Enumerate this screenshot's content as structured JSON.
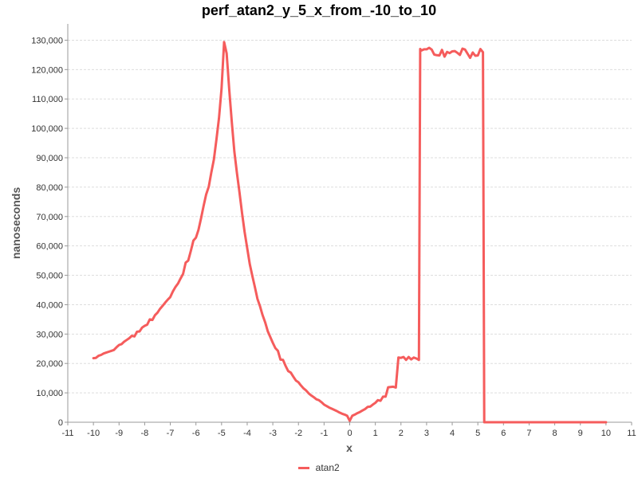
{
  "chart_data": {
    "type": "line",
    "title": "perf_atan2_y_5_x_from_-10_to_10",
    "xlabel": "x",
    "ylabel": "nanoseconds",
    "xlim": [
      -11,
      11
    ],
    "ylim": [
      0,
      135000
    ],
    "x_ticks": [
      "-11",
      "-10",
      "-9",
      "-8",
      "-7",
      "-6",
      "-5",
      "-4",
      "-3",
      "-2",
      "-1",
      "0",
      "1",
      "2",
      "3",
      "4",
      "5",
      "6",
      "7",
      "8",
      "9",
      "10",
      "11"
    ],
    "y_ticks": [
      "0",
      "10,000",
      "20,000",
      "30,000",
      "40,000",
      "50,000",
      "60,000",
      "70,000",
      "80,000",
      "90,000",
      "100,000",
      "110,000",
      "120,000",
      "130,000"
    ],
    "grid": "horizontal dashed",
    "legend_placement": "bottom-center",
    "series": [
      {
        "name": "atan2",
        "color": "#f55c5c",
        "points": [
          [
            -10,
            21800
          ],
          [
            -9.9,
            21900
          ],
          [
            -9.8,
            22600
          ],
          [
            -9.7,
            22900
          ],
          [
            -9.6,
            23400
          ],
          [
            -9.5,
            23700
          ],
          [
            -9.4,
            24000
          ],
          [
            -9.3,
            24300
          ],
          [
            -9.2,
            24600
          ],
          [
            -9.1,
            25500
          ],
          [
            -9.0,
            26300
          ],
          [
            -8.9,
            26600
          ],
          [
            -8.8,
            27400
          ],
          [
            -8.7,
            28000
          ],
          [
            -8.6,
            28600
          ],
          [
            -8.5,
            29400
          ],
          [
            -8.4,
            29200
          ],
          [
            -8.3,
            30800
          ],
          [
            -8.2,
            30900
          ],
          [
            -8.1,
            32200
          ],
          [
            -8.0,
            32800
          ],
          [
            -7.9,
            33200
          ],
          [
            -7.8,
            35000
          ],
          [
            -7.7,
            34800
          ],
          [
            -7.6,
            36400
          ],
          [
            -7.5,
            37300
          ],
          [
            -7.4,
            38600
          ],
          [
            -7.3,
            39600
          ],
          [
            -7.2,
            40700
          ],
          [
            -7.1,
            41700
          ],
          [
            -7.0,
            42600
          ],
          [
            -6.9,
            44500
          ],
          [
            -6.8,
            46000
          ],
          [
            -6.7,
            47200
          ],
          [
            -6.6,
            48900
          ],
          [
            -6.5,
            50500
          ],
          [
            -6.4,
            54300
          ],
          [
            -6.3,
            55000
          ],
          [
            -6.2,
            58300
          ],
          [
            -6.1,
            61800
          ],
          [
            -6.0,
            62800
          ],
          [
            -5.9,
            65500
          ],
          [
            -5.8,
            69400
          ],
          [
            -5.7,
            73600
          ],
          [
            -5.6,
            77500
          ],
          [
            -5.5,
            80200
          ],
          [
            -5.4,
            85000
          ],
          [
            -5.3,
            89400
          ],
          [
            -5.2,
            96200
          ],
          [
            -5.1,
            103500
          ],
          [
            -5.0,
            113500
          ],
          [
            -4.9,
            129400
          ],
          [
            -4.8,
            125500
          ],
          [
            -4.7,
            113000
          ],
          [
            -4.6,
            102000
          ],
          [
            -4.5,
            92000
          ],
          [
            -4.4,
            84800
          ],
          [
            -4.3,
            78200
          ],
          [
            -4.2,
            71200
          ],
          [
            -4.1,
            64800
          ],
          [
            -4.0,
            59200
          ],
          [
            -3.9,
            53800
          ],
          [
            -3.8,
            49800
          ],
          [
            -3.7,
            46000
          ],
          [
            -3.6,
            42000
          ],
          [
            -3.5,
            39500
          ],
          [
            -3.4,
            36500
          ],
          [
            -3.3,
            34000
          ],
          [
            -3.2,
            31000
          ],
          [
            -3.1,
            29000
          ],
          [
            -3.0,
            27000
          ],
          [
            -2.9,
            25200
          ],
          [
            -2.8,
            24300
          ],
          [
            -2.7,
            21300
          ],
          [
            -2.6,
            21200
          ],
          [
            -2.5,
            19100
          ],
          [
            -2.4,
            17400
          ],
          [
            -2.3,
            16900
          ],
          [
            -2.2,
            15500
          ],
          [
            -2.1,
            14200
          ],
          [
            -2.0,
            13600
          ],
          [
            -1.9,
            12500
          ],
          [
            -1.8,
            11500
          ],
          [
            -1.7,
            10800
          ],
          [
            -1.6,
            9800
          ],
          [
            -1.5,
            9100
          ],
          [
            -1.4,
            8500
          ],
          [
            -1.3,
            7800
          ],
          [
            -1.2,
            7500
          ],
          [
            -1.1,
            6800
          ],
          [
            -1.0,
            6000
          ],
          [
            -0.9,
            5500
          ],
          [
            -0.8,
            5000
          ],
          [
            -0.7,
            4600
          ],
          [
            -0.6,
            4200
          ],
          [
            -0.5,
            3800
          ],
          [
            -0.4,
            3300
          ],
          [
            -0.3,
            2900
          ],
          [
            -0.2,
            2600
          ],
          [
            -0.1,
            2200
          ],
          [
            0.0,
            500
          ],
          [
            0.1,
            2200
          ],
          [
            0.2,
            2600
          ],
          [
            0.3,
            3100
          ],
          [
            0.4,
            3500
          ],
          [
            0.5,
            4000
          ],
          [
            0.6,
            4500
          ],
          [
            0.7,
            5200
          ],
          [
            0.8,
            5300
          ],
          [
            0.9,
            6000
          ],
          [
            1.0,
            6600
          ],
          [
            1.1,
            7500
          ],
          [
            1.2,
            7300
          ],
          [
            1.3,
            8700
          ],
          [
            1.4,
            8700
          ],
          [
            1.5,
            11900
          ],
          [
            1.6,
            12000
          ],
          [
            1.7,
            12100
          ],
          [
            1.8,
            11800
          ],
          [
            1.9,
            22000
          ],
          [
            2.0,
            21900
          ],
          [
            2.1,
            22200
          ],
          [
            2.2,
            21200
          ],
          [
            2.3,
            22200
          ],
          [
            2.4,
            21400
          ],
          [
            2.5,
            22000
          ],
          [
            2.6,
            21700
          ],
          [
            2.7,
            21200
          ],
          [
            2.75,
            127000
          ],
          [
            2.8,
            126500
          ],
          [
            2.9,
            126900
          ],
          [
            3.0,
            126900
          ],
          [
            3.1,
            127400
          ],
          [
            3.2,
            126800
          ],
          [
            3.3,
            125100
          ],
          [
            3.4,
            124900
          ],
          [
            3.5,
            124800
          ],
          [
            3.6,
            126700
          ],
          [
            3.7,
            124400
          ],
          [
            3.8,
            126000
          ],
          [
            3.9,
            125600
          ],
          [
            4.0,
            126200
          ],
          [
            4.1,
            126300
          ],
          [
            4.2,
            125700
          ],
          [
            4.3,
            125000
          ],
          [
            4.4,
            127100
          ],
          [
            4.5,
            126800
          ],
          [
            4.6,
            125400
          ],
          [
            4.7,
            124000
          ],
          [
            4.8,
            125800
          ],
          [
            4.9,
            124700
          ],
          [
            5.0,
            124800
          ],
          [
            5.1,
            127000
          ],
          [
            5.2,
            125900
          ],
          [
            5.25,
            0
          ],
          [
            5.5,
            0
          ],
          [
            6.0,
            0
          ],
          [
            6.5,
            0
          ],
          [
            7.0,
            0
          ],
          [
            7.5,
            0
          ],
          [
            8.0,
            0
          ],
          [
            8.5,
            0
          ],
          [
            9.0,
            0
          ],
          [
            9.5,
            0
          ],
          [
            10.0,
            0
          ]
        ]
      }
    ]
  }
}
